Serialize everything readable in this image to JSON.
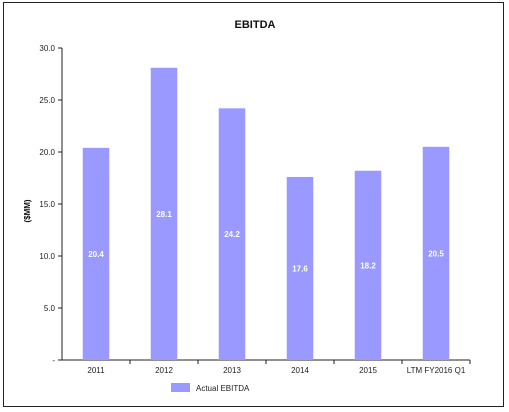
{
  "chart_data": {
    "type": "bar",
    "title": "EBITDA",
    "xlabel": "",
    "ylabel": "($MM)",
    "categories": [
      "2011",
      "2012",
      "2013",
      "2014",
      "2015",
      "LTM FY2016 Q1"
    ],
    "series": [
      {
        "name": "Actual EBITDA",
        "values": [
          20.4,
          28.1,
          24.2,
          17.6,
          18.2,
          20.5
        ],
        "data_labels": [
          "20.4",
          "28.1",
          "24.2",
          "17.6",
          "18.2",
          "20.5"
        ]
      }
    ],
    "ylim": [
      0,
      30
    ],
    "yticks": [
      "-",
      "5.0",
      "10.0",
      "15.0",
      "20.0",
      "25.0",
      "30.0"
    ],
    "grid": false,
    "legend_position": "bottom-left",
    "colors": {
      "bar": "#9999ff",
      "axis": "#222222",
      "frame": "#222222"
    }
  }
}
